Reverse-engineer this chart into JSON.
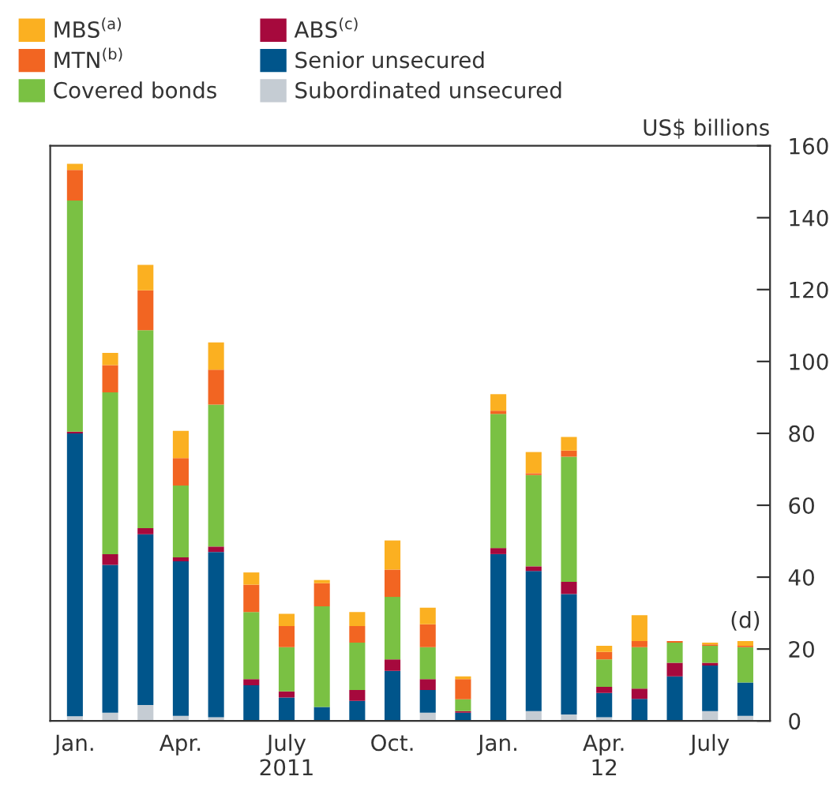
{
  "chart_data": {
    "type": "bar",
    "stacked": true,
    "ylabel": "US$ billions",
    "categories": [
      "Jan.",
      null,
      null,
      "Apr.",
      null,
      null,
      "July\n2011",
      null,
      null,
      "Oct.",
      null,
      null,
      "Jan.",
      null,
      null,
      "Apr.\n12",
      null,
      null,
      "July",
      null
    ],
    "series": [
      {
        "name": "Subordinated unsecured",
        "color": "#c5ccd3",
        "values": [
          1.3,
          2.3,
          4.4,
          1.4,
          1.0,
          0,
          0,
          0,
          0,
          0,
          2.3,
          0,
          0,
          2.7,
          1.8,
          1.0,
          0,
          0,
          2.7,
          1.4
        ]
      },
      {
        "name": "Senior unsecured",
        "color": "#00558b",
        "values": [
          78.7,
          41.1,
          47.5,
          43.0,
          46.0,
          9.9,
          6.5,
          3.9,
          5.6,
          13.9,
          6.3,
          2.3,
          46.4,
          39.0,
          33.5,
          6.8,
          6.1,
          12.4,
          12.7,
          9.3
        ]
      },
      {
        "name": "ABS$^{(c)}$",
        "color": "#a6093d",
        "values": [
          0.5,
          3.0,
          1.7,
          1.1,
          1.5,
          1.7,
          1.7,
          0,
          3.0,
          3.2,
          3.0,
          0.4,
          1.7,
          1.3,
          3.4,
          1.7,
          2.9,
          3.8,
          0.8,
          0
        ]
      },
      {
        "name": "Covered bonds",
        "color": "#7ac143",
        "values": [
          64.3,
          45.0,
          55.1,
          20.0,
          39.5,
          18.7,
          12.3,
          28.0,
          13.2,
          17.4,
          8.9,
          3.3,
          37.3,
          25.4,
          34.8,
          7.6,
          11.5,
          5.6,
          4.7,
          9.8
        ]
      },
      {
        "name": "MTN$^{(b)}$",
        "color": "#f26522",
        "values": [
          8.5,
          7.6,
          11.1,
          7.6,
          9.7,
          7.6,
          5.9,
          6.4,
          4.6,
          7.6,
          6.4,
          5.6,
          0.9,
          0.5,
          1.7,
          2.1,
          1.7,
          0.4,
          0.4,
          0.4
        ]
      },
      {
        "name": "MBS$^{(a)}$",
        "color": "#fbb021",
        "values": [
          1.7,
          3.4,
          7.1,
          7.6,
          7.6,
          3.4,
          3.4,
          0.9,
          3.9,
          8.1,
          4.6,
          0.8,
          4.6,
          5.9,
          3.8,
          1.7,
          7.2,
          0,
          0.5,
          1.3
        ]
      }
    ],
    "ylim": [
      0,
      160
    ],
    "yticks": [
      0,
      20,
      40,
      60,
      80,
      100,
      120,
      140,
      160
    ],
    "legend": "top left",
    "annotations": [
      {
        "text": "(d)",
        "y": 22.2
      }
    ]
  }
}
